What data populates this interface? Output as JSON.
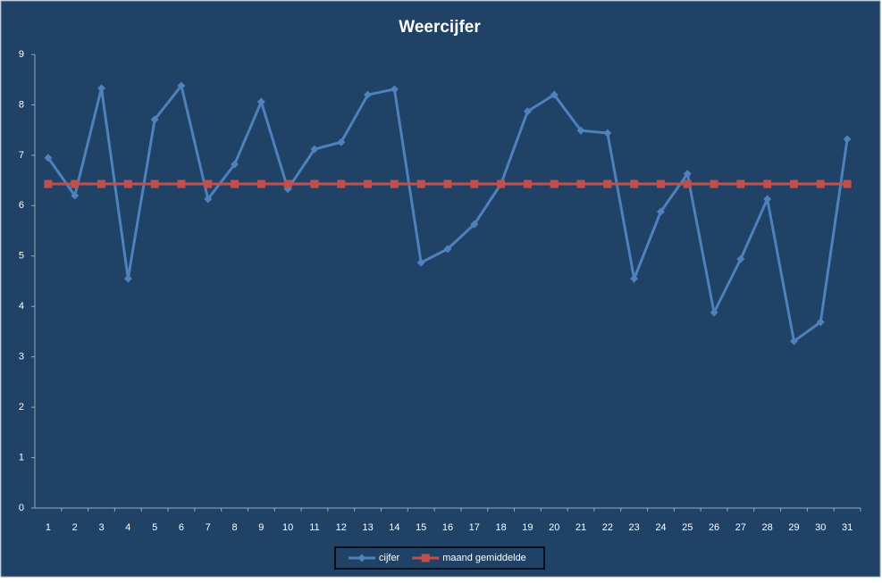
{
  "chart_data": {
    "type": "line",
    "title": "Weercijfer",
    "categories": [
      "1",
      "2",
      "3",
      "4",
      "5",
      "6",
      "7",
      "8",
      "9",
      "10",
      "11",
      "12",
      "13",
      "14",
      "15",
      "16",
      "17",
      "18",
      "19",
      "20",
      "21",
      "22",
      "23",
      "24",
      "25",
      "26",
      "27",
      "28",
      "29",
      "30",
      "31"
    ],
    "series": [
      {
        "name": "cijfer",
        "color": "#4f81bd",
        "marker": "diamond",
        "values": [
          6.95,
          6.2,
          8.33,
          4.55,
          7.71,
          8.38,
          6.13,
          6.82,
          8.06,
          6.33,
          7.12,
          7.26,
          8.2,
          8.31,
          4.87,
          5.14,
          5.63,
          6.43,
          7.87,
          8.2,
          7.49,
          7.44,
          4.55,
          5.88,
          6.63,
          3.88,
          4.94,
          6.13,
          3.31,
          3.69,
          7.32
        ]
      },
      {
        "name": "maand gemiddelde",
        "color": "#c0504d",
        "marker": "square",
        "values": [
          6.43,
          6.43,
          6.43,
          6.43,
          6.43,
          6.43,
          6.43,
          6.43,
          6.43,
          6.43,
          6.43,
          6.43,
          6.43,
          6.43,
          6.43,
          6.43,
          6.43,
          6.43,
          6.43,
          6.43,
          6.43,
          6.43,
          6.43,
          6.43,
          6.43,
          6.43,
          6.43,
          6.43,
          6.43,
          6.43,
          6.43
        ]
      }
    ],
    "ylim": [
      0,
      9
    ],
    "yticks": [
      0,
      1,
      2,
      3,
      4,
      5,
      6,
      7,
      8,
      9
    ],
    "grid": false,
    "legend": "bottom"
  }
}
